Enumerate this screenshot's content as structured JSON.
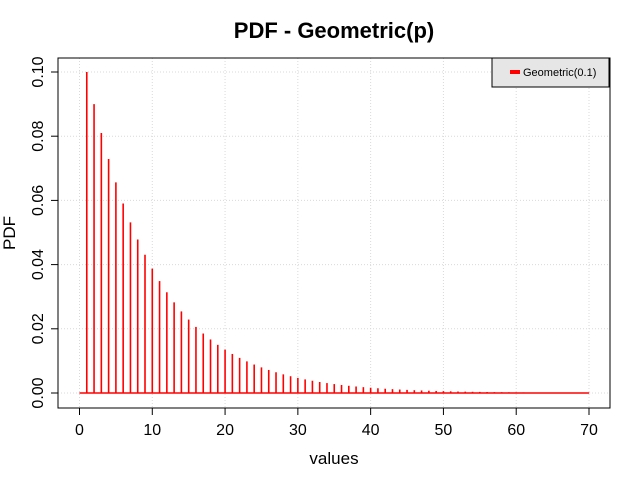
{
  "chart_data": {
    "type": "bar",
    "title": "PDF - Geometric(p)",
    "xlabel": "values",
    "ylabel": "PDF",
    "xlim": [
      0,
      70
    ],
    "ylim": [
      0,
      0.1
    ],
    "x_ticks": [
      0,
      10,
      20,
      30,
      40,
      50,
      60,
      70
    ],
    "x_tick_labels": [
      "0",
      "10",
      "20",
      "30",
      "40",
      "50",
      "60",
      "70"
    ],
    "y_ticks": [
      0,
      0.02,
      0.04,
      0.06,
      0.08,
      0.1
    ],
    "y_tick_labels": [
      "0.00",
      "0.02",
      "0.04",
      "0.06",
      "0.08",
      "0.10"
    ],
    "grid": true,
    "legend_position": "top-right",
    "series": [
      {
        "name": "Geometric(0.1)",
        "color": "#ff0000",
        "x": [
          0,
          1,
          2,
          3,
          4,
          5,
          6,
          7,
          8,
          9,
          10,
          11,
          12,
          13,
          14,
          15,
          16,
          17,
          18,
          19,
          20,
          21,
          22,
          23,
          24,
          25,
          26,
          27,
          28,
          29,
          30,
          31,
          32,
          33,
          34,
          35,
          36,
          37,
          38,
          39,
          40,
          41,
          42,
          43,
          44,
          45,
          46,
          47,
          48,
          49,
          50,
          51,
          52,
          53,
          54,
          55,
          56,
          57,
          58,
          59,
          60,
          61,
          62,
          63,
          64,
          65,
          66,
          67,
          68,
          69,
          70
        ],
        "values": [
          0,
          0.1,
          0.09,
          0.081,
          0.0729,
          0.06561,
          0.05905,
          0.05314,
          0.04783,
          0.04305,
          0.03874,
          0.03487,
          0.03138,
          0.02824,
          0.02542,
          0.02288,
          0.02059,
          0.01853,
          0.01668,
          0.01501,
          0.01351,
          0.01216,
          0.01094,
          0.00985,
          0.00886,
          0.00798,
          0.00718,
          0.00646,
          0.00581,
          0.00523,
          0.00471,
          0.00424,
          0.00382,
          0.00343,
          0.00309,
          0.00278,
          0.0025,
          0.00225,
          0.00203,
          0.00182,
          0.00164,
          0.00148,
          0.00133,
          0.0012,
          0.00108,
          0.00097,
          0.00087,
          0.00079,
          0.00071,
          0.00064,
          0.00057,
          0.00052,
          0.00046,
          0.00042,
          0.00038,
          0.00034,
          0.00031,
          0.00027,
          0.00025,
          0.00022,
          0.0002,
          0.00018,
          0.00016,
          0.00015,
          0.00013,
          0.00012,
          0.00011,
          0.0001,
          9e-05,
          8e-05,
          7e-05
        ]
      }
    ]
  }
}
